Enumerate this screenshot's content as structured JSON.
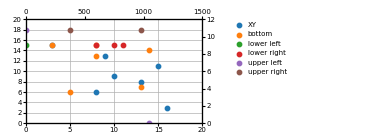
{
  "chart_data": {
    "type": "scatter",
    "xlim": [
      0,
      20
    ],
    "xticks": [
      0,
      5,
      10,
      15,
      20
    ],
    "ylim": [
      0,
      20
    ],
    "yticks": [
      0,
      2,
      4,
      6,
      8,
      10,
      12,
      14,
      16,
      18,
      20
    ],
    "x2lim": [
      0,
      1500
    ],
    "x2ticks": [
      0,
      500,
      1000,
      1500
    ],
    "y2lim": [
      0,
      12
    ],
    "y2ticks": [
      0,
      2,
      4,
      6,
      8,
      10,
      12
    ],
    "grid": true,
    "legend": "upper left",
    "marker": "o",
    "series": [
      {
        "name": "XY",
        "x": [
          3,
          8,
          9,
          10,
          13,
          15,
          16
        ],
        "values": [
          15,
          6,
          13,
          9,
          8,
          11,
          3
        ]
      },
      {
        "name": "bottom",
        "x": [
          3,
          5,
          8,
          8,
          13,
          14
        ],
        "values": [
          15,
          6,
          15,
          13,
          7,
          14
        ]
      },
      {
        "name": "lower left",
        "x": [
          0
        ],
        "values": [
          15
        ]
      },
      {
        "name": "lower right",
        "x": [
          8,
          10,
          11
        ],
        "values": [
          15,
          15,
          15
        ]
      },
      {
        "name": "upper left",
        "x": [
          0,
          14
        ],
        "values": [
          18,
          0
        ]
      },
      {
        "name": "upper right",
        "x": [
          5,
          13
        ],
        "values": [
          18,
          18
        ]
      }
    ]
  }
}
